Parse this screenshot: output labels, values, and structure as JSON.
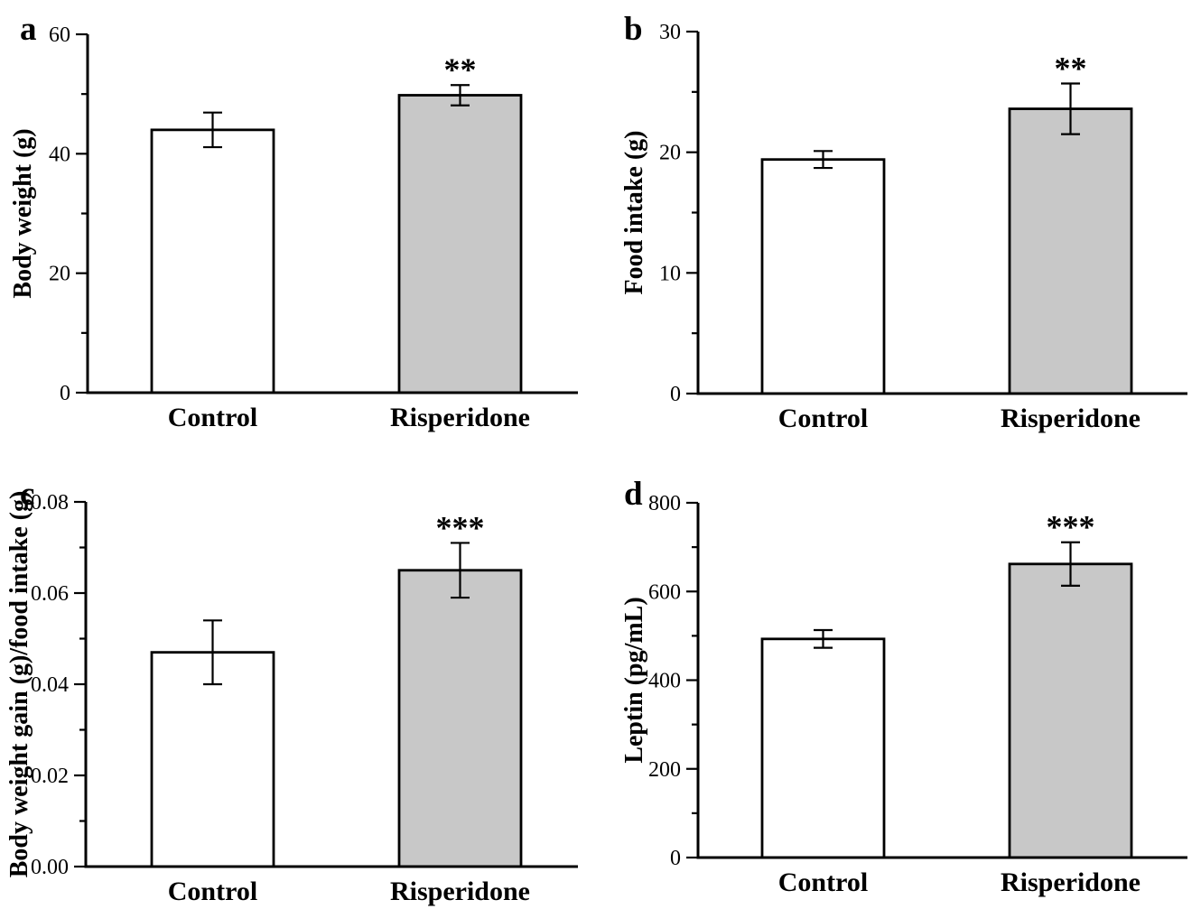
{
  "figure": {
    "background": "#ffffff",
    "categories": [
      "Control",
      "Risperidone"
    ],
    "colors": {
      "control_bar_fill": "#ffffff",
      "risperidone_bar_fill": "#c8c8c8",
      "line_and_text": "#000000"
    }
  },
  "chart_data": [
    {
      "panel": "a",
      "type": "bar",
      "title": "",
      "ylabel": "Body weight (g)",
      "xlabel": "",
      "categories": [
        "Control",
        "Risperidone"
      ],
      "values": [
        44.0,
        49.8
      ],
      "errors": [
        2.9,
        1.7
      ],
      "significance": [
        "",
        "**"
      ],
      "ylim": [
        0,
        60
      ],
      "yticks": [
        0,
        20,
        40,
        60
      ],
      "ytick_labels": [
        "0",
        "20",
        "40",
        "60"
      ],
      "minor_yticks": [
        10,
        30,
        50
      ],
      "bar_fills": [
        "#ffffff",
        "#c8c8c8"
      ],
      "grid": false,
      "legend": "none"
    },
    {
      "panel": "b",
      "type": "bar",
      "title": "",
      "ylabel": "Food intake (g)",
      "xlabel": "",
      "categories": [
        "Control",
        "Risperidone"
      ],
      "values": [
        19.4,
        23.6
      ],
      "errors": [
        0.7,
        2.1
      ],
      "significance": [
        "",
        "**"
      ],
      "ylim": [
        0,
        30
      ],
      "yticks": [
        0,
        10,
        20,
        30
      ],
      "ytick_labels": [
        "0",
        "10",
        "20",
        "30"
      ],
      "minor_yticks": [
        5,
        15,
        25
      ],
      "bar_fills": [
        "#ffffff",
        "#c8c8c8"
      ],
      "grid": false,
      "legend": "none"
    },
    {
      "panel": "c",
      "type": "bar",
      "title": "",
      "ylabel": "Body weight gain (g)/food intake (g)",
      "xlabel": "",
      "categories": [
        "Control",
        "Risperidone"
      ],
      "values": [
        0.047,
        0.065
      ],
      "errors": [
        0.007,
        0.006
      ],
      "significance": [
        "",
        "***"
      ],
      "ylim": [
        0,
        0.08
      ],
      "yticks": [
        0,
        0.02,
        0.04,
        0.06,
        0.08
      ],
      "ytick_labels": [
        "0.00",
        "0.02",
        "0.04",
        "0.06",
        "0.08"
      ],
      "minor_yticks": [
        0.01,
        0.03,
        0.05,
        0.07
      ],
      "bar_fills": [
        "#ffffff",
        "#c8c8c8"
      ],
      "grid": false,
      "legend": "none"
    },
    {
      "panel": "d",
      "type": "bar",
      "title": "",
      "ylabel": "Leptin (pg/mL)",
      "xlabel": "",
      "categories": [
        "Control",
        "Risperidone"
      ],
      "values": [
        493,
        662
      ],
      "errors": [
        20,
        49
      ],
      "significance": [
        "",
        "***"
      ],
      "ylim": [
        0,
        800
      ],
      "yticks": [
        0,
        200,
        400,
        600,
        800
      ],
      "ytick_labels": [
        "0",
        "200",
        "400",
        "600",
        "800"
      ],
      "minor_yticks": [
        100,
        300,
        500,
        700
      ],
      "bar_fills": [
        "#ffffff",
        "#c8c8c8"
      ],
      "grid": false,
      "legend": "none"
    }
  ]
}
